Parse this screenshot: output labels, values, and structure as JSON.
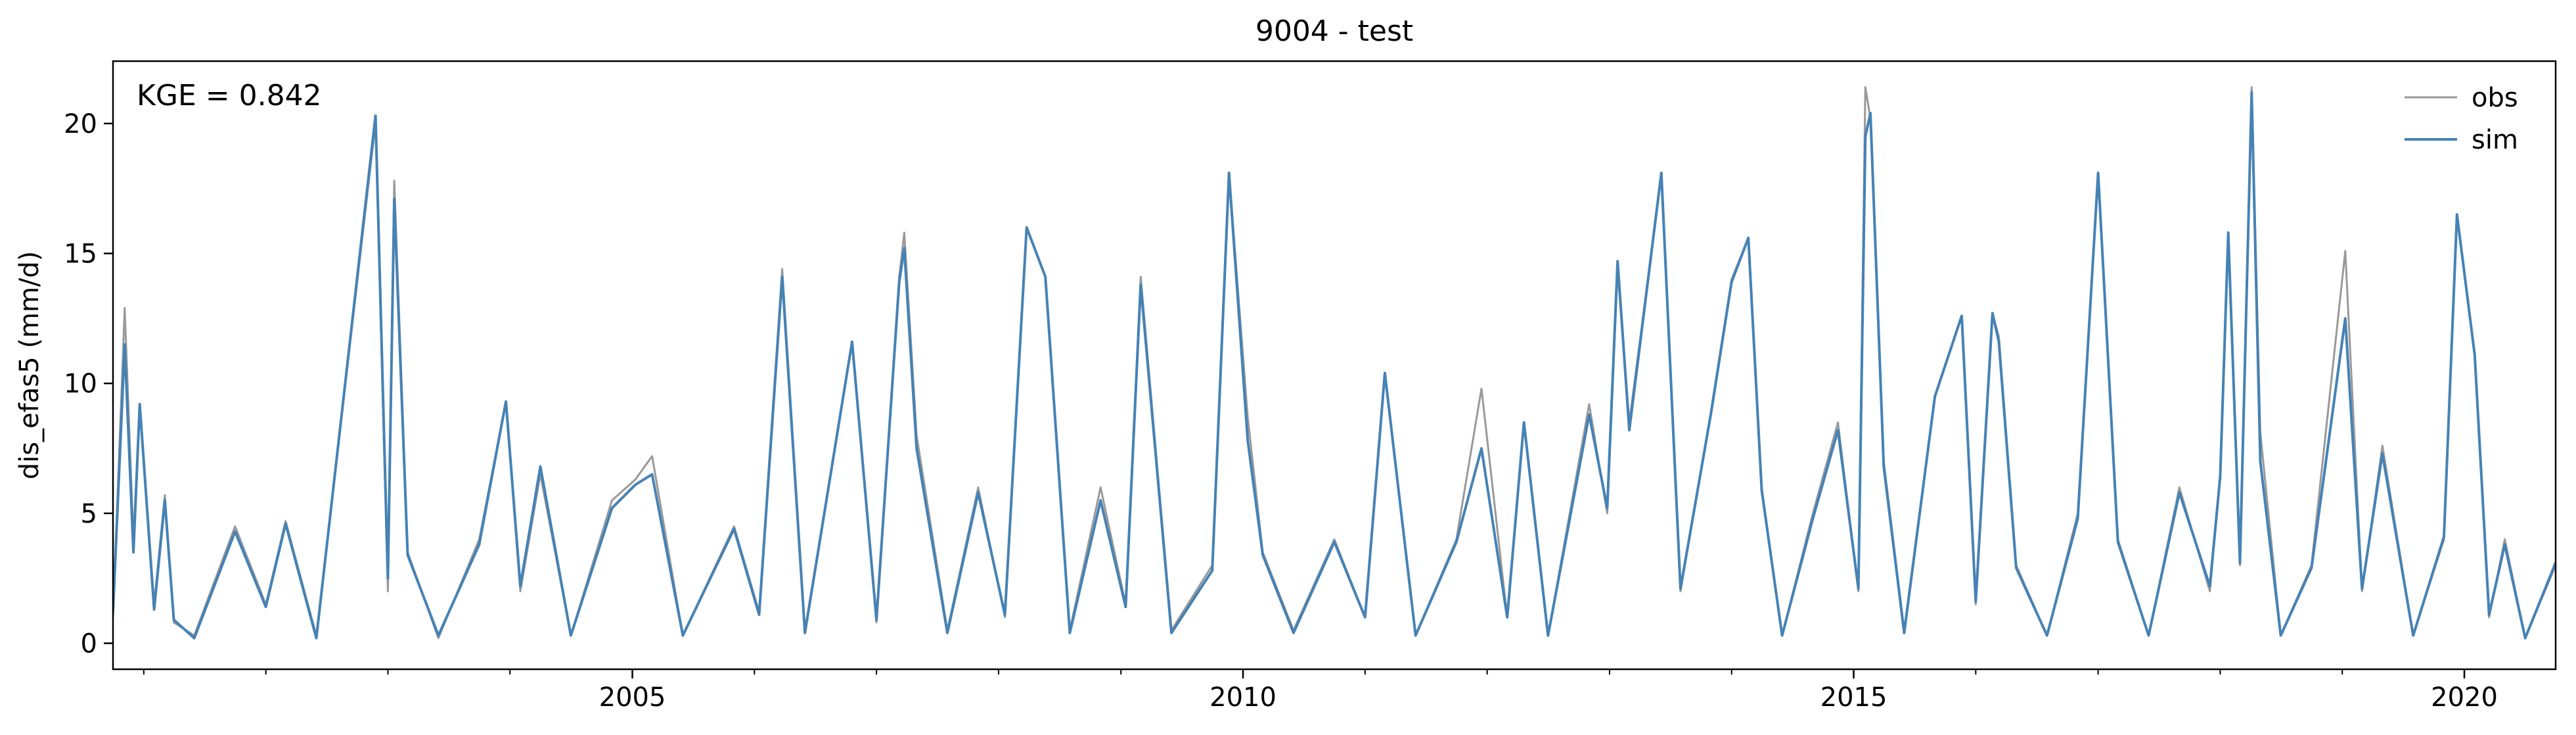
{
  "chart_data": {
    "type": "line",
    "title": "9004 - test",
    "xlabel": "",
    "ylabel": "dis_efas5 (mm/d)",
    "annotation": "KGE = 0.842",
    "xlim": [
      "2000-10-01",
      "2020-09-30"
    ],
    "ylim": [
      -1.0,
      22.4
    ],
    "x_ticks": [
      {
        "value": "2005-01-01",
        "label": "2005"
      },
      {
        "value": "2010-01-01",
        "label": "2010"
      },
      {
        "value": "2015-01-01",
        "label": "2015"
      },
      {
        "value": "2020-01-01",
        "label": "2020"
      }
    ],
    "y_ticks": [
      {
        "value": 0,
        "label": "0"
      },
      {
        "value": 5,
        "label": "5"
      },
      {
        "value": 10,
        "label": "10"
      },
      {
        "value": 15,
        "label": "15"
      },
      {
        "value": 20,
        "label": "20"
      }
    ],
    "grid": false,
    "legend_position": "top-right",
    "series": [
      {
        "name": "obs",
        "color": "#999999",
        "x": [
          "2000-10-01",
          "2000-11-05",
          "2000-12-01",
          "2000-12-20",
          "2001-02-01",
          "2001-03-05",
          "2001-04-01",
          "2001-06-01",
          "2001-10-01",
          "2002-01-01",
          "2002-03-01",
          "2002-06-01",
          "2002-11-25",
          "2003-01-01",
          "2003-01-20",
          "2003-03-01",
          "2003-06-01",
          "2003-10-01",
          "2003-12-20",
          "2004-02-01",
          "2004-04-01",
          "2004-07-01",
          "2004-11-01",
          "2005-01-10",
          "2005-03-01",
          "2005-06-01",
          "2005-11-01",
          "2006-01-15",
          "2006-03-25",
          "2006-06-01",
          "2006-10-20",
          "2007-01-01",
          "2007-03-10",
          "2007-03-25",
          "2007-05-01",
          "2007-08-01",
          "2007-11-01",
          "2008-01-20",
          "2008-03-25",
          "2008-05-20",
          "2008-08-01",
          "2008-11-01",
          "2009-01-15",
          "2009-03-01",
          "2009-06-01",
          "2009-10-01",
          "2009-11-20",
          "2010-01-15",
          "2010-03-01",
          "2010-06-01",
          "2010-10-01",
          "2011-01-01",
          "2011-03-01",
          "2011-06-01",
          "2011-10-01",
          "2011-12-15",
          "2012-03-01",
          "2012-04-20",
          "2012-07-01",
          "2012-11-01",
          "2012-12-25",
          "2013-01-25",
          "2013-03-01",
          "2013-06-05",
          "2013-08-01",
          "2013-11-01",
          "2014-01-01",
          "2014-02-20",
          "2014-04-01",
          "2014-06-01",
          "2014-09-01",
          "2014-11-15",
          "2015-01-15",
          "2015-02-05",
          "2015-02-20",
          "2015-04-01",
          "2015-06-01",
          "2015-09-01",
          "2015-11-20",
          "2016-01-01",
          "2016-02-20",
          "2016-03-10",
          "2016-05-01",
          "2016-08-01",
          "2016-11-01",
          "2017-01-01",
          "2017-03-01",
          "2017-06-01",
          "2017-09-01",
          "2017-12-01",
          "2018-01-01",
          "2018-01-25",
          "2018-03-01",
          "2018-04-05",
          "2018-05-01",
          "2018-07-01",
          "2018-10-01",
          "2019-01-10",
          "2019-03-01",
          "2019-05-01",
          "2019-08-01",
          "2019-11-01",
          "2019-12-10",
          "2020-02-01",
          "2020-03-15",
          "2020-05-01",
          "2020-07-01",
          "2020-09-30"
        ],
        "y": [
          1.0,
          12.9,
          4.0,
          9.2,
          1.5,
          5.7,
          0.8,
          0.3,
          4.5,
          1.5,
          4.7,
          0.3,
          20.0,
          2.0,
          17.8,
          3.5,
          0.2,
          4.0,
          9.3,
          2.0,
          6.5,
          0.3,
          5.5,
          6.3,
          7.2,
          0.3,
          4.5,
          1.2,
          14.4,
          0.5,
          11.6,
          0.8,
          14.1,
          15.8,
          8.0,
          0.5,
          6.0,
          1.0,
          16.0,
          14.1,
          0.5,
          6.0,
          1.5,
          14.1,
          0.5,
          3.0,
          18.1,
          8.7,
          3.5,
          0.5,
          4.0,
          1.0,
          10.4,
          0.3,
          4.0,
          9.8,
          1.0,
          8.5,
          0.3,
          9.2,
          5.0,
          14.4,
          8.5,
          18.0,
          2.0,
          9.0,
          14.0,
          15.6,
          6.0,
          0.3,
          5.0,
          8.5,
          2.0,
          21.4,
          20.2,
          7.0,
          0.5,
          9.5,
          12.6,
          1.5,
          12.7,
          11.8,
          3.0,
          0.3,
          5.0,
          18.1,
          4.0,
          0.3,
          6.0,
          2.0,
          6.5,
          15.8,
          3.0,
          21.4,
          8.1,
          0.3,
          3.0,
          15.1,
          2.0,
          7.6,
          0.3,
          4.0,
          16.5,
          11.1,
          1.0,
          4.0,
          0.2,
          3.0
        ]
      },
      {
        "name": "sim",
        "color": "#4682b4",
        "x": [
          "2000-10-01",
          "2000-11-05",
          "2000-12-01",
          "2000-12-20",
          "2001-02-01",
          "2001-03-05",
          "2001-04-01",
          "2001-06-01",
          "2001-10-01",
          "2002-01-01",
          "2002-03-01",
          "2002-06-01",
          "2002-11-25",
          "2003-01-01",
          "2003-01-20",
          "2003-03-01",
          "2003-06-01",
          "2003-10-01",
          "2003-12-20",
          "2004-02-01",
          "2004-04-01",
          "2004-07-01",
          "2004-11-01",
          "2005-01-10",
          "2005-03-01",
          "2005-06-01",
          "2005-11-01",
          "2006-01-15",
          "2006-03-25",
          "2006-06-01",
          "2006-10-20",
          "2007-01-01",
          "2007-03-10",
          "2007-03-25",
          "2007-05-01",
          "2007-08-01",
          "2007-11-01",
          "2008-01-20",
          "2008-03-25",
          "2008-05-20",
          "2008-08-01",
          "2008-11-01",
          "2009-01-15",
          "2009-03-01",
          "2009-06-01",
          "2009-10-01",
          "2009-11-20",
          "2010-01-15",
          "2010-03-01",
          "2010-06-01",
          "2010-10-01",
          "2011-01-01",
          "2011-03-01",
          "2011-06-01",
          "2011-10-01",
          "2011-12-15",
          "2012-03-01",
          "2012-04-20",
          "2012-07-01",
          "2012-11-01",
          "2012-12-25",
          "2013-01-25",
          "2013-03-01",
          "2013-06-05",
          "2013-08-01",
          "2013-11-01",
          "2014-01-01",
          "2014-02-20",
          "2014-04-01",
          "2014-06-01",
          "2014-09-01",
          "2014-11-15",
          "2015-01-15",
          "2015-02-05",
          "2015-02-20",
          "2015-04-01",
          "2015-06-01",
          "2015-09-01",
          "2015-11-20",
          "2016-01-01",
          "2016-02-20",
          "2016-03-10",
          "2016-05-01",
          "2016-08-01",
          "2016-11-01",
          "2017-01-01",
          "2017-03-01",
          "2017-06-01",
          "2017-09-01",
          "2017-12-01",
          "2018-01-01",
          "2018-01-25",
          "2018-03-01",
          "2018-04-05",
          "2018-05-01",
          "2018-07-01",
          "2018-10-01",
          "2019-01-10",
          "2019-03-01",
          "2019-05-01",
          "2019-08-01",
          "2019-11-01",
          "2019-12-10",
          "2020-02-01",
          "2020-03-15",
          "2020-05-01",
          "2020-07-01",
          "2020-09-30"
        ],
        "y": [
          1.2,
          11.5,
          3.5,
          9.2,
          1.3,
          5.5,
          0.9,
          0.2,
          4.3,
          1.4,
          4.6,
          0.2,
          20.3,
          2.5,
          17.1,
          3.4,
          0.3,
          3.8,
          9.3,
          2.2,
          6.8,
          0.3,
          5.2,
          6.1,
          6.5,
          0.3,
          4.4,
          1.1,
          14.1,
          0.4,
          11.6,
          0.9,
          13.9,
          15.2,
          7.5,
          0.4,
          5.8,
          1.1,
          16.0,
          14.1,
          0.4,
          5.5,
          1.4,
          13.8,
          0.4,
          2.8,
          18.1,
          7.8,
          3.4,
          0.4,
          3.9,
          1.0,
          10.4,
          0.3,
          3.9,
          7.5,
          1.0,
          8.5,
          0.3,
          8.8,
          5.2,
          14.7,
          8.2,
          18.1,
          2.1,
          8.9,
          13.9,
          15.6,
          5.9,
          0.3,
          4.8,
          8.2,
          2.1,
          19.5,
          20.4,
          6.8,
          0.4,
          9.5,
          12.6,
          1.6,
          12.7,
          11.6,
          2.9,
          0.3,
          4.8,
          18.1,
          3.9,
          0.3,
          5.8,
          2.2,
          6.4,
          15.8,
          3.1,
          21.2,
          7.0,
          0.3,
          2.9,
          12.5,
          2.1,
          7.3,
          0.3,
          4.1,
          16.5,
          11.1,
          1.1,
          3.8,
          0.2,
          3.1
        ]
      }
    ]
  }
}
